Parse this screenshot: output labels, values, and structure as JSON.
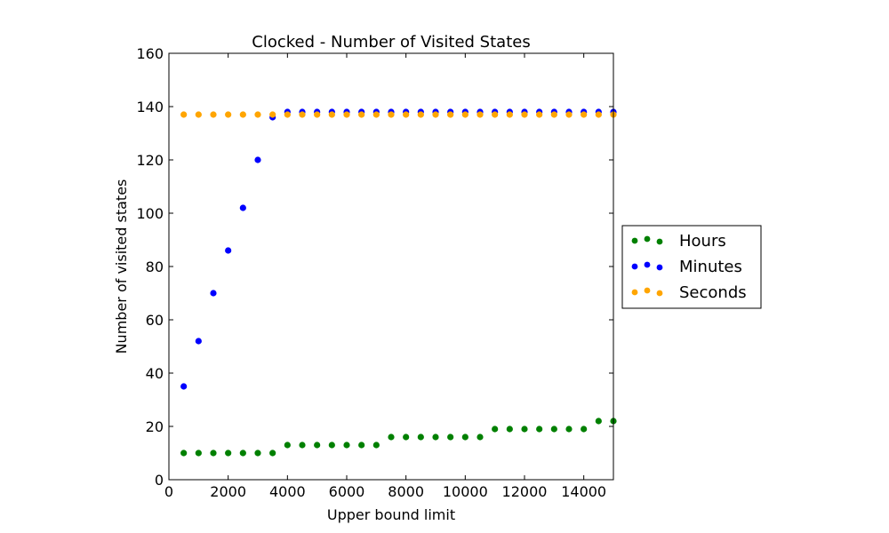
{
  "chart_data": {
    "type": "scatter",
    "title": "Clocked - Number of Visited States",
    "xlabel": "Upper bound limit",
    "ylabel": "Number of visited states",
    "xlim": [
      0,
      15000
    ],
    "ylim": [
      0,
      160
    ],
    "xticks": [
      0,
      2000,
      4000,
      6000,
      8000,
      10000,
      12000,
      14000
    ],
    "yticks": [
      0,
      20,
      40,
      60,
      80,
      100,
      120,
      140,
      160
    ],
    "grid": false,
    "legend_position": "right, outside",
    "x": [
      500,
      1000,
      1500,
      2000,
      2500,
      3000,
      3500,
      4000,
      4500,
      5000,
      5500,
      6000,
      6500,
      7000,
      7500,
      8000,
      8500,
      9000,
      9500,
      10000,
      10500,
      11000,
      11500,
      12000,
      12500,
      13000,
      13500,
      14000,
      14500,
      15000
    ],
    "series": [
      {
        "name": "Hours",
        "color": "#008000",
        "values": [
          10,
          10,
          10,
          10,
          10,
          10,
          10,
          13,
          13,
          13,
          13,
          13,
          13,
          13,
          16,
          16,
          16,
          16,
          16,
          16,
          16,
          19,
          19,
          19,
          19,
          19,
          19,
          19,
          22,
          22
        ]
      },
      {
        "name": "Minutes",
        "color": "#0000ff",
        "values": [
          35,
          52,
          70,
          86,
          102,
          120,
          136,
          138,
          138,
          138,
          138,
          138,
          138,
          138,
          138,
          138,
          138,
          138,
          138,
          138,
          138,
          138,
          138,
          138,
          138,
          138,
          138,
          138,
          138,
          138
        ]
      },
      {
        "name": "Seconds",
        "color": "#ffa500",
        "values": [
          137,
          137,
          137,
          137,
          137,
          137,
          137,
          137,
          137,
          137,
          137,
          137,
          137,
          137,
          137,
          137,
          137,
          137,
          137,
          137,
          137,
          137,
          137,
          137,
          137,
          137,
          137,
          137,
          137,
          137
        ]
      }
    ]
  }
}
